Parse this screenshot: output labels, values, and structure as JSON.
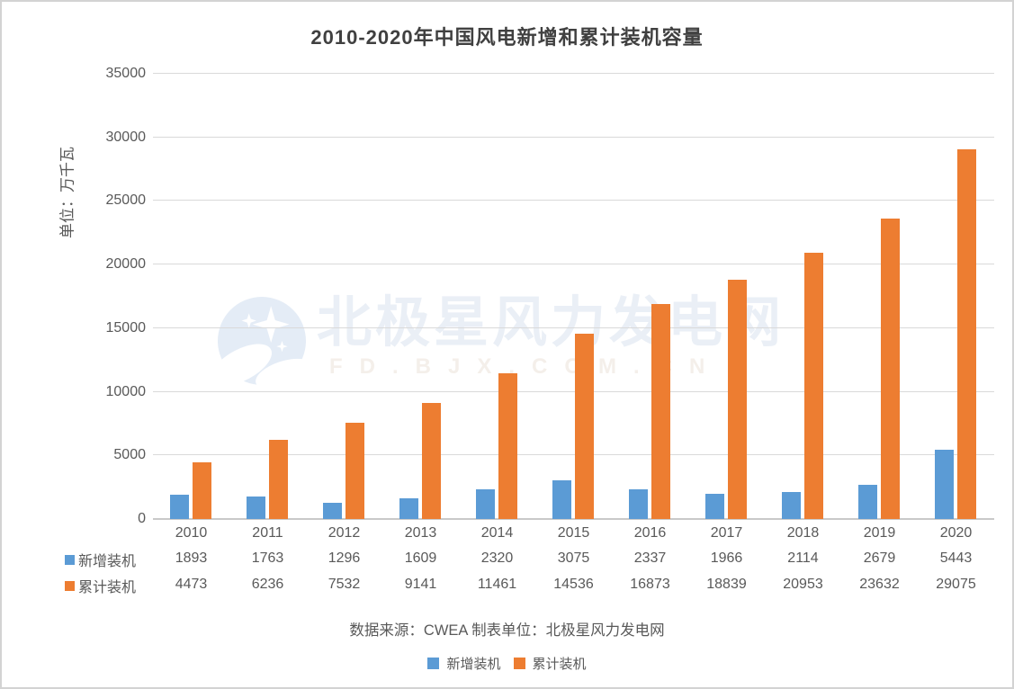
{
  "page": {
    "title": "2010-2020年中国风电新增和累计装机容量",
    "source_note": "数据来源：CWEA 制表单位：北极星风力发电网",
    "watermark": {
      "brand_text": "北极星风力发电网",
      "site_text": "FD.BJX.COM.CN",
      "logo": "polar-star-moon-logo",
      "brand_color": "#eaeff6",
      "site_color": "#f4efea",
      "logo_color": "#e4ecf6"
    }
  },
  "colors": {
    "series_new": "#5B9BD5",
    "series_cumulative": "#ED7D31",
    "gridline": "#d9d9d9",
    "axis_line": "#c9c9c9",
    "text": "#595959",
    "title": "#404040",
    "page_border": "#d3d3d3"
  },
  "chart_data": {
    "type": "bar",
    "title": "2010-2020年中国风电新增和累计装机容量",
    "xlabel": "",
    "ylabel": "单位：万千瓦",
    "ylim": [
      0,
      35000
    ],
    "ytick_step": 5000,
    "ytick_labels": [
      "0",
      "5000",
      "10000",
      "15000",
      "20000",
      "25000",
      "30000",
      "35000"
    ],
    "grid": true,
    "legend_position": "bottom",
    "data_table_visible": true,
    "categories": [
      "2010",
      "2011",
      "2012",
      "2013",
      "2014",
      "2015",
      "2016",
      "2017",
      "2018",
      "2019",
      "2020"
    ],
    "series": [
      {
        "name": "新增装机",
        "color": "#5B9BD5",
        "values": [
          1893,
          1763,
          1296,
          1609,
          2320,
          3075,
          2337,
          1966,
          2114,
          2679,
          5443
        ]
      },
      {
        "name": "累计装机",
        "color": "#ED7D31",
        "values": [
          4473,
          6236,
          7532,
          9141,
          11461,
          14536,
          16873,
          18839,
          20953,
          23632,
          29075
        ]
      }
    ]
  }
}
